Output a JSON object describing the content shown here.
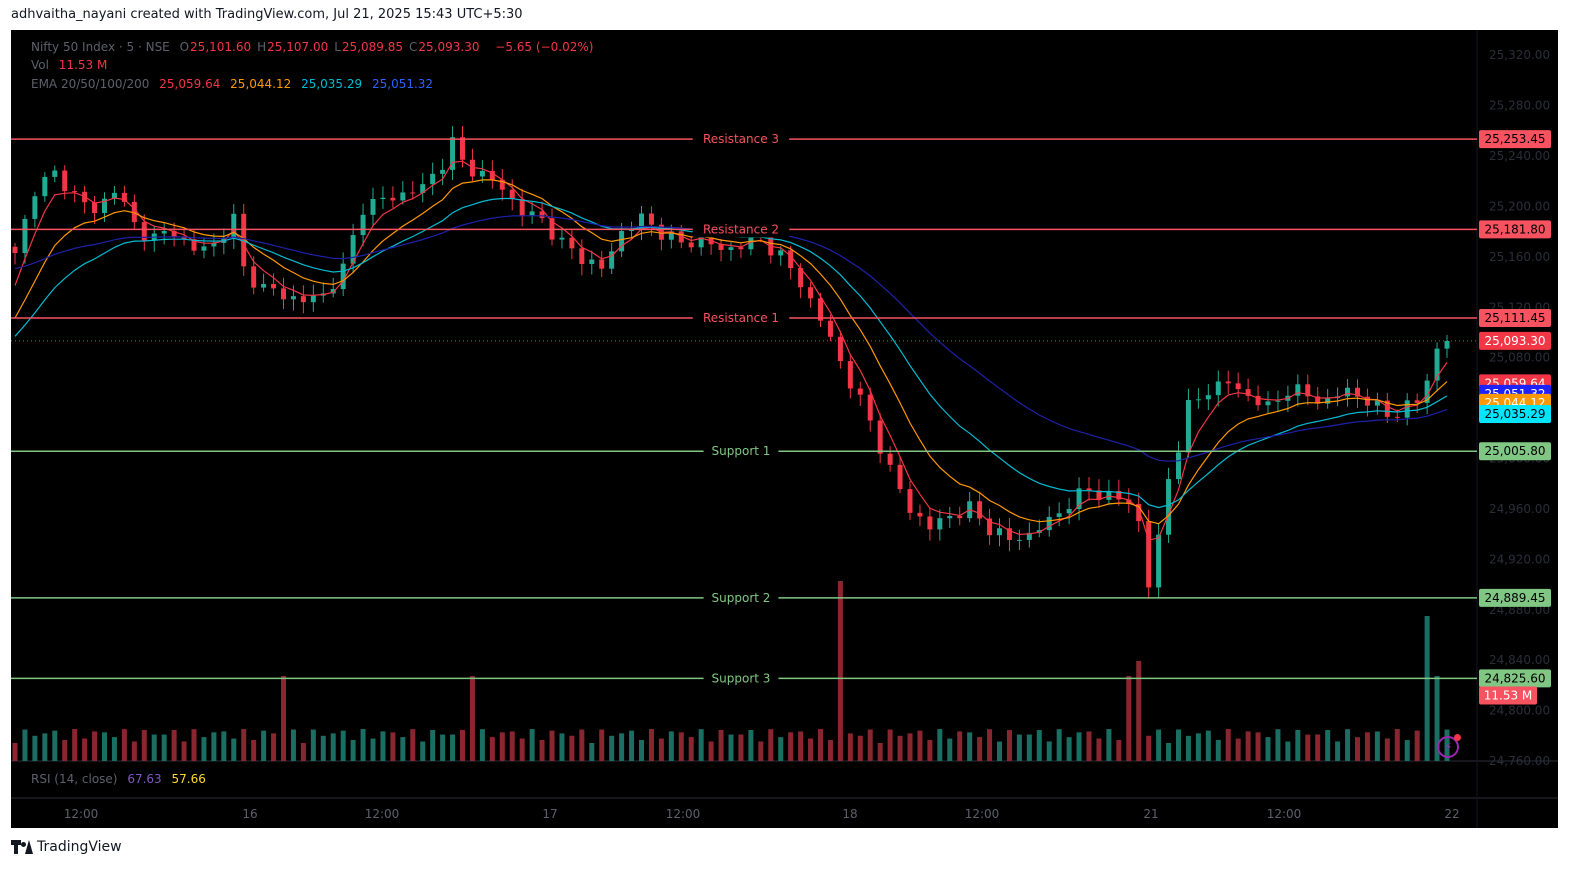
{
  "header": {
    "credit": "adhvaitha_nayani created with TradingView.com, Jul 21, 2025 15:43 UTC+5:30"
  },
  "legend": {
    "symbol": "Nifty 50 Index · 5 · NSE",
    "ohlc": [
      {
        "k": "O",
        "v": "25,101.60"
      },
      {
        "k": "H",
        "v": "25,107.00"
      },
      {
        "k": "L",
        "v": "25,089.85"
      },
      {
        "k": "C",
        "v": "25,093.30"
      }
    ],
    "change": "−5.65 (−0.02%)",
    "vol_label": "Vol",
    "vol_value": "11.53 M",
    "ema_label": "EMA 20/50/100/200",
    "ema_values": [
      "25,059.64",
      "25,044.12",
      "25,035.29",
      "25,051.32"
    ]
  },
  "rsi": {
    "label": "RSI (14, close)",
    "v1": "67.63",
    "v2": "57.66"
  },
  "footer": {
    "brand": "TradingView"
  },
  "colors": {
    "bg": "#000000",
    "up": "#22ab94",
    "down": "#f23645",
    "ema20": "#f23645",
    "ema50": "#ff9800",
    "ema100": "#00bcd4",
    "ema200": "#1e22aa",
    "resistance": "#f7525f",
    "support": "#81c784",
    "axis_text": "#2a2e39",
    "vol_up": "#1b6e62",
    "vol_down": "#8a2630"
  },
  "chart_data": {
    "type": "line",
    "subtype": "candlestick_with_levels",
    "title": "Nifty 50 Index · 5 · NSE",
    "ylim": [
      24760,
      25340
    ],
    "y_ticks": [
      "25,320.00",
      "25,280.00",
      "25,240.00",
      "25,200.00",
      "25,160.00",
      "25,120.00",
      "25,080.00",
      "25,040.00",
      "25,000.00",
      "24,960.00",
      "24,920.00",
      "24,880.00",
      "24,840.00",
      "24,800.00",
      "24,760.00"
    ],
    "x_ticks": [
      "12:00",
      "16",
      "12:00",
      "17",
      "12:00",
      "18",
      "12:00",
      "21",
      "12:00",
      "22"
    ],
    "levels": [
      {
        "name": "Resistance 3",
        "value": 25253.45,
        "price_label": "25,253.45",
        "kind": "resistance"
      },
      {
        "name": "Resistance 2",
        "value": 25181.8,
        "price_label": "25,181.80",
        "kind": "resistance"
      },
      {
        "name": "Resistance 1",
        "value": 25111.45,
        "price_label": "25,111.45",
        "kind": "resistance"
      },
      {
        "name": "Support 1",
        "value": 25005.8,
        "price_label": "25,005.80",
        "kind": "support"
      },
      {
        "name": "Support 2",
        "value": 24889.45,
        "price_label": "24,889.45",
        "kind": "support"
      },
      {
        "name": "Support 3",
        "value": 24825.6,
        "price_label": "24,825.60",
        "kind": "support"
      }
    ],
    "last_price": {
      "value": 25093.3,
      "label": "25,093.30"
    },
    "ema_badges": [
      {
        "value": 25059.64,
        "label": "25,059.64",
        "series": "EMA 20"
      },
      {
        "value": 25051.32,
        "label": "25,051.32",
        "series": "EMA 200"
      },
      {
        "value": 25044.12,
        "label": "25,044.12",
        "series": "EMA 50"
      },
      {
        "value": 25035.29,
        "label": "25,035.29",
        "series": "EMA 100"
      }
    ],
    "volume_label": {
      "value": 24812,
      "label": "11.53 M"
    },
    "close_path": [
      [
        0,
        25160
      ],
      [
        2,
        25215
      ],
      [
        4,
        25225
      ],
      [
        6,
        25210
      ],
      [
        8,
        25195
      ],
      [
        10,
        25215
      ],
      [
        12,
        25185
      ],
      [
        14,
        25175
      ],
      [
        16,
        25180
      ],
      [
        18,
        25165
      ],
      [
        20,
        25170
      ],
      [
        22,
        25190
      ],
      [
        23,
        25150
      ],
      [
        25,
        25135
      ],
      [
        27,
        25130
      ],
      [
        29,
        25125
      ],
      [
        31,
        25130
      ],
      [
        33,
        25150
      ],
      [
        35,
        25200
      ],
      [
        37,
        25205
      ],
      [
        39,
        25210
      ],
      [
        41,
        25215
      ],
      [
        43,
        25235
      ],
      [
        44,
        25250
      ],
      [
        45,
        25235
      ],
      [
        47,
        25225
      ],
      [
        49,
        25215
      ],
      [
        51,
        25195
      ],
      [
        53,
        25190
      ],
      [
        55,
        25170
      ],
      [
        57,
        25160
      ],
      [
        59,
        25150
      ],
      [
        61,
        25180
      ],
      [
        63,
        25190
      ],
      [
        65,
        25180
      ],
      [
        67,
        25170
      ],
      [
        69,
        25175
      ],
      [
        71,
        25165
      ],
      [
        73,
        25170
      ],
      [
        75,
        25175
      ],
      [
        77,
        25160
      ],
      [
        79,
        25140
      ],
      [
        80,
        25125
      ],
      [
        81,
        25110
      ],
      [
        82,
        25095
      ],
      [
        84,
        25060
      ],
      [
        86,
        25030
      ],
      [
        88,
        24990
      ],
      [
        90,
        24960
      ],
      [
        92,
        24945
      ],
      [
        94,
        24955
      ],
      [
        96,
        24960
      ],
      [
        98,
        24945
      ],
      [
        100,
        24935
      ],
      [
        102,
        24940
      ],
      [
        104,
        24950
      ],
      [
        106,
        24965
      ],
      [
        108,
        24975
      ],
      [
        110,
        24970
      ],
      [
        112,
        24965
      ],
      [
        113,
        24950
      ],
      [
        114,
        24900
      ],
      [
        115,
        24935
      ],
      [
        116,
        24985
      ],
      [
        117,
        25010
      ],
      [
        118,
        25040
      ],
      [
        120,
        25055
      ],
      [
        122,
        25060
      ],
      [
        124,
        25050
      ],
      [
        126,
        25040
      ],
      [
        128,
        25055
      ],
      [
        130,
        25050
      ],
      [
        132,
        25045
      ],
      [
        134,
        25055
      ],
      [
        136,
        25045
      ],
      [
        138,
        25035
      ],
      [
        140,
        25040
      ],
      [
        141,
        25045
      ],
      [
        142,
        25065
      ],
      [
        143,
        25085
      ],
      [
        144,
        25093.3
      ]
    ],
    "series": [
      {
        "name": "EMA 20",
        "last": 25059.64
      },
      {
        "name": "EMA 50",
        "last": 25044.12
      },
      {
        "name": "EMA 100",
        "last": 25035.29
      },
      {
        "name": "EMA 200",
        "last": 25051.32
      }
    ]
  }
}
